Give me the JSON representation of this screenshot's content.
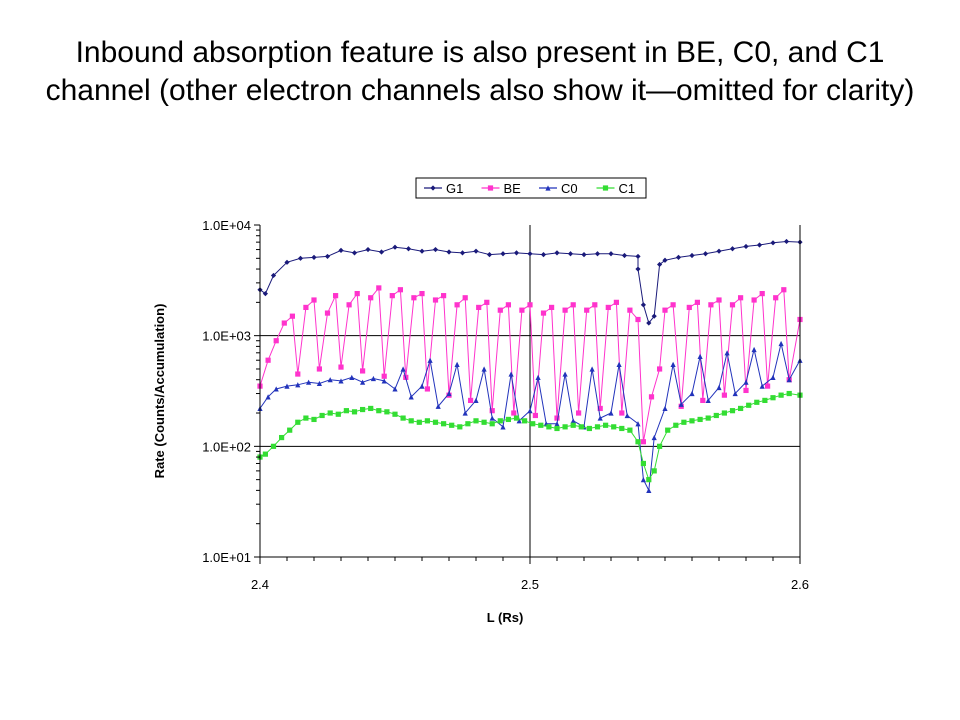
{
  "slide": {
    "title": "Inbound absorption feature is also present in BE, C0, and C1 channel (other electron channels also show it—omitted for clarity)"
  },
  "colors": {
    "G1": "#1a1a7a",
    "BE": "#ff33cc",
    "C0": "#2233bb",
    "C1": "#33dd33",
    "grid": "#000000"
  },
  "chart_data": {
    "type": "line",
    "xlabel": "L (Rs)",
    "ylabel": "Rate (Counts/Accumulation)",
    "xlim": [
      2.4,
      2.6
    ],
    "ylim": [
      10,
      10000
    ],
    "yscale": "log",
    "xticks": [
      "2.4",
      "2.5",
      "2.6"
    ],
    "xtick_values": [
      2.4,
      2.5,
      2.6
    ],
    "yticks": [
      "1.0E+01",
      "1.0E+02",
      "1.0E+03",
      "1.0E+04"
    ],
    "ytick_values": [
      10,
      100,
      1000,
      10000
    ],
    "grid": true,
    "legend_position": "top",
    "series": [
      {
        "name": "G1",
        "marker": "diamond",
        "color_key": "G1",
        "points": [
          [
            2.4,
            2600
          ],
          [
            2.402,
            2400
          ],
          [
            2.405,
            3500
          ],
          [
            2.41,
            4600
          ],
          [
            2.415,
            5000
          ],
          [
            2.42,
            5100
          ],
          [
            2.425,
            5200
          ],
          [
            2.43,
            5900
          ],
          [
            2.435,
            5600
          ],
          [
            2.44,
            6000
          ],
          [
            2.445,
            5700
          ],
          [
            2.45,
            6300
          ],
          [
            2.455,
            6100
          ],
          [
            2.46,
            5800
          ],
          [
            2.465,
            6000
          ],
          [
            2.47,
            5700
          ],
          [
            2.475,
            5600
          ],
          [
            2.48,
            5800
          ],
          [
            2.485,
            5400
          ],
          [
            2.49,
            5500
          ],
          [
            2.495,
            5600
          ],
          [
            2.5,
            5500
          ],
          [
            2.505,
            5400
          ],
          [
            2.51,
            5600
          ],
          [
            2.515,
            5500
          ],
          [
            2.52,
            5400
          ],
          [
            2.525,
            5500
          ],
          [
            2.53,
            5500
          ],
          [
            2.535,
            5300
          ],
          [
            2.54,
            5200
          ],
          [
            2.54,
            4000
          ],
          [
            2.542,
            1900
          ],
          [
            2.544,
            1300
          ],
          [
            2.546,
            1500
          ],
          [
            2.548,
            4400
          ],
          [
            2.55,
            4800
          ],
          [
            2.555,
            5100
          ],
          [
            2.56,
            5300
          ],
          [
            2.565,
            5500
          ],
          [
            2.57,
            5800
          ],
          [
            2.575,
            6100
          ],
          [
            2.58,
            6400
          ],
          [
            2.585,
            6600
          ],
          [
            2.59,
            6900
          ],
          [
            2.595,
            7100
          ],
          [
            2.6,
            7000
          ]
        ]
      },
      {
        "name": "BE",
        "marker": "square",
        "color_key": "BE",
        "points": [
          [
            2.4,
            350
          ],
          [
            2.403,
            600
          ],
          [
            2.406,
            900
          ],
          [
            2.409,
            1300
          ],
          [
            2.412,
            1500
          ],
          [
            2.414,
            450
          ],
          [
            2.417,
            1800
          ],
          [
            2.42,
            2100
          ],
          [
            2.422,
            500
          ],
          [
            2.425,
            1600
          ],
          [
            2.428,
            2300
          ],
          [
            2.43,
            520
          ],
          [
            2.433,
            1900
          ],
          [
            2.436,
            2400
          ],
          [
            2.438,
            480
          ],
          [
            2.441,
            2200
          ],
          [
            2.444,
            2700
          ],
          [
            2.446,
            430
          ],
          [
            2.449,
            2300
          ],
          [
            2.452,
            2600
          ],
          [
            2.454,
            420
          ],
          [
            2.457,
            2200
          ],
          [
            2.46,
            2400
          ],
          [
            2.462,
            330
          ],
          [
            2.465,
            2100
          ],
          [
            2.468,
            2300
          ],
          [
            2.47,
            290
          ],
          [
            2.473,
            1900
          ],
          [
            2.476,
            2200
          ],
          [
            2.478,
            260
          ],
          [
            2.481,
            1800
          ],
          [
            2.484,
            2000
          ],
          [
            2.486,
            210
          ],
          [
            2.489,
            1700
          ],
          [
            2.492,
            1900
          ],
          [
            2.494,
            200
          ],
          [
            2.497,
            1700
          ],
          [
            2.5,
            1900
          ],
          [
            2.502,
            190
          ],
          [
            2.505,
            1600
          ],
          [
            2.508,
            1800
          ],
          [
            2.51,
            180
          ],
          [
            2.513,
            1700
          ],
          [
            2.516,
            1900
          ],
          [
            2.518,
            200
          ],
          [
            2.521,
            1700
          ],
          [
            2.524,
            1900
          ],
          [
            2.526,
            220
          ],
          [
            2.529,
            1800
          ],
          [
            2.532,
            2000
          ],
          [
            2.534,
            200
          ],
          [
            2.537,
            1700
          ],
          [
            2.54,
            1400
          ],
          [
            2.542,
            110
          ],
          [
            2.545,
            280
          ],
          [
            2.548,
            500
          ],
          [
            2.55,
            1700
          ],
          [
            2.553,
            1900
          ],
          [
            2.556,
            230
          ],
          [
            2.559,
            1800
          ],
          [
            2.562,
            2000
          ],
          [
            2.564,
            260
          ],
          [
            2.567,
            1900
          ],
          [
            2.57,
            2100
          ],
          [
            2.572,
            290
          ],
          [
            2.575,
            1900
          ],
          [
            2.578,
            2200
          ],
          [
            2.58,
            320
          ],
          [
            2.583,
            2100
          ],
          [
            2.586,
            2400
          ],
          [
            2.588,
            350
          ],
          [
            2.591,
            2200
          ],
          [
            2.594,
            2600
          ],
          [
            2.596,
            400
          ],
          [
            2.6,
            1400
          ]
        ]
      },
      {
        "name": "C0",
        "marker": "triangle",
        "color_key": "C0",
        "points": [
          [
            2.4,
            220
          ],
          [
            2.403,
            280
          ],
          [
            2.406,
            330
          ],
          [
            2.41,
            350
          ],
          [
            2.414,
            360
          ],
          [
            2.418,
            380
          ],
          [
            2.422,
            370
          ],
          [
            2.426,
            400
          ],
          [
            2.43,
            390
          ],
          [
            2.434,
            420
          ],
          [
            2.438,
            380
          ],
          [
            2.442,
            410
          ],
          [
            2.446,
            390
          ],
          [
            2.45,
            330
          ],
          [
            2.453,
            500
          ],
          [
            2.456,
            280
          ],
          [
            2.46,
            350
          ],
          [
            2.463,
            600
          ],
          [
            2.466,
            230
          ],
          [
            2.47,
            300
          ],
          [
            2.473,
            550
          ],
          [
            2.476,
            200
          ],
          [
            2.48,
            260
          ],
          [
            2.483,
            500
          ],
          [
            2.486,
            180
          ],
          [
            2.49,
            150
          ],
          [
            2.493,
            450
          ],
          [
            2.496,
            170
          ],
          [
            2.5,
            210
          ],
          [
            2.503,
            420
          ],
          [
            2.506,
            160
          ],
          [
            2.51,
            160
          ],
          [
            2.513,
            450
          ],
          [
            2.516,
            170
          ],
          [
            2.52,
            150
          ],
          [
            2.523,
            500
          ],
          [
            2.526,
            180
          ],
          [
            2.53,
            200
          ],
          [
            2.533,
            550
          ],
          [
            2.536,
            190
          ],
          [
            2.54,
            160
          ],
          [
            2.542,
            50
          ],
          [
            2.544,
            40
          ],
          [
            2.546,
            120
          ],
          [
            2.55,
            220
          ],
          [
            2.553,
            550
          ],
          [
            2.556,
            240
          ],
          [
            2.56,
            300
          ],
          [
            2.563,
            650
          ],
          [
            2.566,
            260
          ],
          [
            2.57,
            340
          ],
          [
            2.573,
            700
          ],
          [
            2.576,
            300
          ],
          [
            2.58,
            380
          ],
          [
            2.583,
            750
          ],
          [
            2.586,
            350
          ],
          [
            2.59,
            420
          ],
          [
            2.593,
            850
          ],
          [
            2.596,
            400
          ],
          [
            2.6,
            600
          ]
        ]
      },
      {
        "name": "C1",
        "marker": "square",
        "color_key": "C1",
        "points": [
          [
            2.4,
            80
          ],
          [
            2.402,
            85
          ],
          [
            2.405,
            100
          ],
          [
            2.408,
            120
          ],
          [
            2.411,
            140
          ],
          [
            2.414,
            165
          ],
          [
            2.417,
            180
          ],
          [
            2.42,
            175
          ],
          [
            2.423,
            190
          ],
          [
            2.426,
            200
          ],
          [
            2.429,
            195
          ],
          [
            2.432,
            210
          ],
          [
            2.435,
            205
          ],
          [
            2.438,
            215
          ],
          [
            2.441,
            220
          ],
          [
            2.444,
            210
          ],
          [
            2.447,
            205
          ],
          [
            2.45,
            195
          ],
          [
            2.453,
            180
          ],
          [
            2.456,
            170
          ],
          [
            2.459,
            165
          ],
          [
            2.462,
            170
          ],
          [
            2.465,
            165
          ],
          [
            2.468,
            160
          ],
          [
            2.471,
            155
          ],
          [
            2.474,
            150
          ],
          [
            2.477,
            160
          ],
          [
            2.48,
            170
          ],
          [
            2.483,
            165
          ],
          [
            2.486,
            160
          ],
          [
            2.489,
            170
          ],
          [
            2.492,
            175
          ],
          [
            2.495,
            180
          ],
          [
            2.498,
            170
          ],
          [
            2.501,
            160
          ],
          [
            2.504,
            155
          ],
          [
            2.507,
            150
          ],
          [
            2.51,
            145
          ],
          [
            2.513,
            150
          ],
          [
            2.516,
            155
          ],
          [
            2.519,
            150
          ],
          [
            2.522,
            145
          ],
          [
            2.525,
            150
          ],
          [
            2.528,
            155
          ],
          [
            2.531,
            150
          ],
          [
            2.534,
            145
          ],
          [
            2.537,
            140
          ],
          [
            2.54,
            110
          ],
          [
            2.542,
            70
          ],
          [
            2.544,
            50
          ],
          [
            2.546,
            60
          ],
          [
            2.548,
            100
          ],
          [
            2.551,
            140
          ],
          [
            2.554,
            155
          ],
          [
            2.557,
            165
          ],
          [
            2.56,
            170
          ],
          [
            2.563,
            175
          ],
          [
            2.566,
            180
          ],
          [
            2.569,
            190
          ],
          [
            2.572,
            200
          ],
          [
            2.575,
            210
          ],
          [
            2.578,
            220
          ],
          [
            2.581,
            235
          ],
          [
            2.584,
            250
          ],
          [
            2.587,
            260
          ],
          [
            2.59,
            275
          ],
          [
            2.593,
            290
          ],
          [
            2.596,
            300
          ],
          [
            2.6,
            290
          ]
        ]
      }
    ]
  }
}
